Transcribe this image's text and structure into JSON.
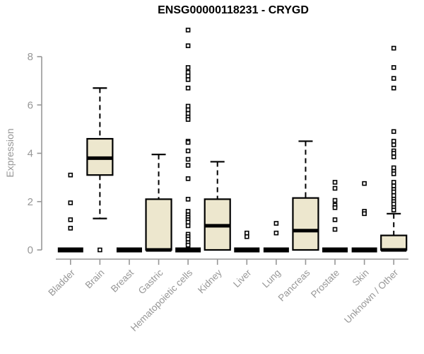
{
  "chart_data": {
    "type": "boxplot",
    "title": "ENSG00000118231 - CRYGD",
    "ylabel": "Expression",
    "xlabel": "",
    "yticks": [
      0,
      2,
      4,
      6,
      8
    ],
    "ylim": [
      0,
      9.3
    ],
    "grid": false,
    "legend": false,
    "categories": [
      "Bladder",
      "Brain",
      "Breast",
      "Gastric",
      "Hematopoietic cells",
      "Kidney",
      "Liver",
      "Lung",
      "Pancreas",
      "Prostate",
      "Skin",
      "Unknown / Other"
    ],
    "series": [
      {
        "category": "Bladder",
        "low": 0,
        "q1": 0,
        "median": 0,
        "q3": 0,
        "high": 0,
        "outliers": [
          3.1,
          1.95,
          1.25,
          0.9
        ]
      },
      {
        "category": "Brain",
        "low": 1.3,
        "q1": 3.1,
        "median": 3.8,
        "q3": 4.6,
        "high": 6.7,
        "outliers": [
          0
        ]
      },
      {
        "category": "Breast",
        "low": 0,
        "q1": 0,
        "median": 0,
        "q3": 0,
        "high": 0,
        "outliers": []
      },
      {
        "category": "Gastric",
        "low": 0,
        "q1": 0,
        "median": 0,
        "q3": 2.1,
        "high": 3.95,
        "outliers": []
      },
      {
        "category": "Hematopoietic cells",
        "low": 0,
        "q1": 0,
        "median": 0,
        "q3": 0,
        "high": 0,
        "outliers": [
          9.1,
          8.45,
          7.55,
          7.35,
          7.2,
          7.05,
          6.7,
          5.95,
          5.8,
          5.65,
          5.5,
          5.4,
          4.5,
          4.45,
          4.1,
          3.75,
          3.5,
          2.95,
          2.1,
          1.6,
          1.45,
          1.35,
          1.25,
          1.15,
          1.0,
          0.65,
          0.55,
          0.45,
          0.3,
          0.2
        ]
      },
      {
        "category": "Kidney",
        "low": 0,
        "q1": 0,
        "median": 1.0,
        "q3": 2.1,
        "high": 3.65,
        "outliers": []
      },
      {
        "category": "Liver",
        "low": 0,
        "q1": 0,
        "median": 0,
        "q3": 0,
        "high": 0,
        "outliers": [
          0.7,
          0.55
        ]
      },
      {
        "category": "Lung",
        "low": 0,
        "q1": 0,
        "median": 0,
        "q3": 0,
        "high": 0,
        "outliers": [
          1.1,
          0.7
        ]
      },
      {
        "category": "Pancreas",
        "low": 0,
        "q1": 0,
        "median": 0.8,
        "q3": 2.15,
        "high": 4.5,
        "outliers": []
      },
      {
        "category": "Prostate",
        "low": 0,
        "q1": 0,
        "median": 0,
        "q3": 0,
        "high": 0,
        "outliers": [
          2.8,
          2.55,
          2.05,
          1.85,
          1.75,
          1.25,
          0.85
        ]
      },
      {
        "category": "Skin",
        "low": 0,
        "q1": 0,
        "median": 0,
        "q3": 0,
        "high": 0,
        "outliers": [
          2.75,
          1.6,
          1.5
        ]
      },
      {
        "category": "Unknown / Other",
        "low": 0,
        "q1": 0,
        "median": 0,
        "q3": 0.6,
        "high": 1.5,
        "outliers": [
          8.35,
          7.55,
          7.1,
          6.7,
          4.9,
          4.5,
          4.35,
          4.1,
          4.0,
          3.85,
          3.4,
          3.25,
          3.15,
          2.8,
          2.65,
          2.5,
          2.4,
          2.25,
          2.1,
          2.0,
          1.9,
          1.75,
          1.65
        ]
      }
    ],
    "colors": {
      "box_fill": "#EDE7CE",
      "box_stroke": "#000000",
      "median": "#000000",
      "outlier_stroke": "#000000",
      "axis": "#979797",
      "tick_label": "#979797",
      "title": "#000000",
      "background": "#FFFFFF"
    }
  }
}
